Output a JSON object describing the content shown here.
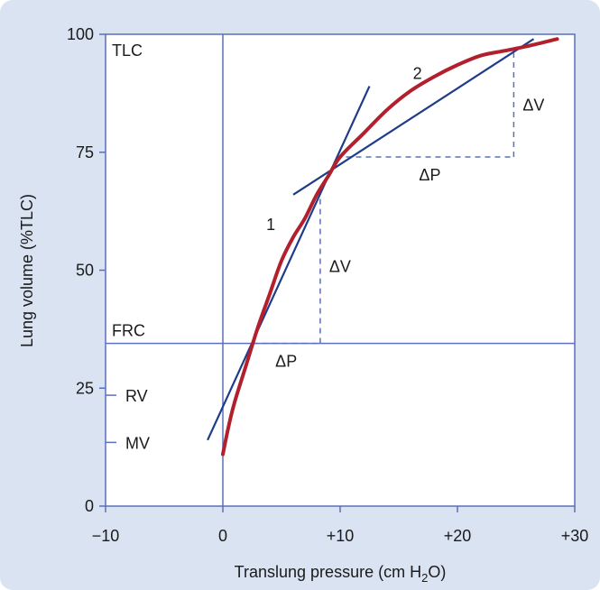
{
  "chart_data": {
    "type": "line",
    "xlabel": "Translung pressure (cm H",
    "xlabel_sub": "2",
    "xlabel_end": "O)",
    "ylabel": "Lung volume (%TLC)",
    "xlim": [
      -10,
      30
    ],
    "ylim": [
      0,
      100
    ],
    "x_ticks": [
      {
        "value": -10,
        "label": "−10"
      },
      {
        "value": 0,
        "label": "0"
      },
      {
        "value": 10,
        "label": "+10"
      },
      {
        "value": 20,
        "label": "+20"
      },
      {
        "value": 30,
        "label": "+30"
      }
    ],
    "y_ticks": [
      {
        "value": 0,
        "label": "0"
      },
      {
        "value": 25,
        "label": "25"
      },
      {
        "value": 50,
        "label": "50"
      },
      {
        "value": 75,
        "label": "75"
      },
      {
        "value": 100,
        "label": "100"
      }
    ],
    "curve": {
      "color": "#b21f2d",
      "x": [
        0,
        0.5,
        1,
        2,
        3,
        4,
        5,
        6,
        7,
        8,
        9,
        10,
        12,
        14,
        16,
        18,
        20,
        22,
        24,
        26,
        28.5
      ],
      "y": [
        11,
        17,
        22,
        30,
        38,
        45,
        52,
        57,
        61,
        66,
        70,
        74,
        79,
        84,
        88,
        91,
        93.5,
        95.5,
        96.5,
        97.5,
        99
      ]
    },
    "tangent_lines": [
      {
        "name": "1",
        "color": "#1f3c88",
        "x": [
          -1.3,
          12.5
        ],
        "y": [
          14,
          89
        ]
      },
      {
        "name": "2",
        "color": "#1f3c88",
        "x": [
          6,
          26.5
        ],
        "y": [
          66,
          99
        ]
      }
    ],
    "reference_lines": {
      "frc": {
        "label": "FRC",
        "y": 34.5
      },
      "tlc": {
        "label": "TLC",
        "y": 100
      },
      "zero_pressure_x": 0
    },
    "volume_markers": [
      {
        "label": "RV",
        "y": 23.5
      },
      {
        "label": "MV",
        "y": 13.5
      }
    ],
    "delta_triangles": [
      {
        "dP_label": "ΔP",
        "dV_label": "ΔV",
        "x_from": 2.5,
        "x_to": 8.3,
        "y_low": 34.5,
        "y_high": 67
      },
      {
        "dP_label": "ΔP",
        "dV_label": "ΔV",
        "x_from": 10.5,
        "x_to": 24.8,
        "y_low": 74,
        "y_high": 96
      }
    ],
    "grid": false,
    "legend": "none"
  }
}
